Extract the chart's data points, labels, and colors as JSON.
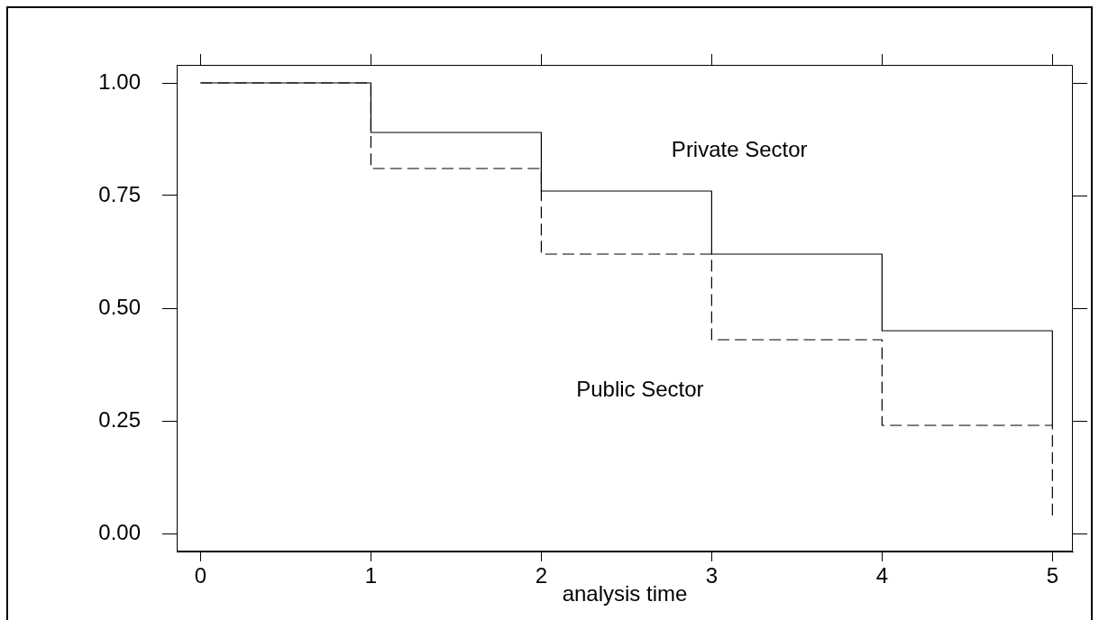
{
  "chart_data": {
    "type": "step",
    "xlabel": "analysis time",
    "x": [
      0,
      1,
      2,
      3,
      4,
      5
    ],
    "series": [
      {
        "name": "Private Sector",
        "color": "#000000",
        "line_style": "solid",
        "values": [
          1.0,
          0.89,
          0.76,
          0.62,
          0.45,
          0.24
        ]
      },
      {
        "name": "Public Sector",
        "color": "#000000",
        "line_style": "dashed",
        "values": [
          1.0,
          0.81,
          0.62,
          0.43,
          0.24,
          0.04
        ]
      }
    ],
    "xlim": [
      -0.14,
      5.12
    ],
    "xticks": [
      0,
      1,
      2,
      3,
      4,
      5
    ],
    "ylim": [
      -0.04,
      1.04
    ],
    "yticks": [
      {
        "value": 0,
        "label": "0.00"
      },
      {
        "value": 0.25,
        "label": "0.25"
      },
      {
        "value": 0.5,
        "label": "0.50"
      },
      {
        "value": 0.75,
        "label": "0.75"
      },
      {
        "value": 1,
        "label": "1.00"
      }
    ],
    "marker": "none"
  }
}
